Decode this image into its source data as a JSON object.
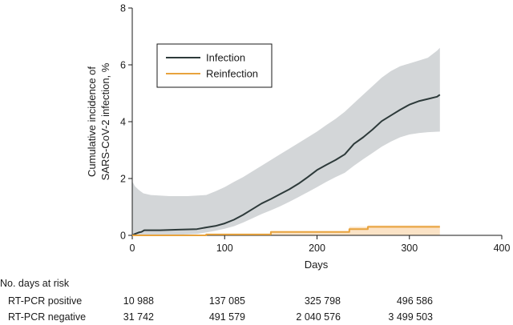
{
  "chart_data": {
    "type": "line",
    "xlabel": "Days",
    "ylabel_lines": [
      "Cumulative incidence of",
      "SARS-CoV-2 infection, %"
    ],
    "xlim": [
      0,
      400
    ],
    "ylim": [
      0,
      8
    ],
    "x_ticks": [
      0,
      100,
      200,
      300,
      400
    ],
    "y_ticks": [
      0,
      2,
      4,
      6,
      8
    ],
    "grid": false,
    "legend_position": "top-left",
    "series": [
      {
        "name": "Infection",
        "color": "#2d3a3a",
        "band_color": "#d3d6d8",
        "points": [
          [
            0,
            0
          ],
          [
            3,
            0.05
          ],
          [
            7,
            0.1
          ],
          [
            10,
            0.12
          ],
          [
            13,
            0.18
          ],
          [
            30,
            0.18
          ],
          [
            50,
            0.2
          ],
          [
            70,
            0.22
          ],
          [
            80,
            0.28
          ],
          [
            90,
            0.33
          ],
          [
            100,
            0.42
          ],
          [
            110,
            0.55
          ],
          [
            120,
            0.72
          ],
          [
            130,
            0.92
          ],
          [
            140,
            1.12
          ],
          [
            150,
            1.28
          ],
          [
            160,
            1.45
          ],
          [
            170,
            1.62
          ],
          [
            180,
            1.82
          ],
          [
            190,
            2.05
          ],
          [
            200,
            2.3
          ],
          [
            210,
            2.48
          ],
          [
            220,
            2.65
          ],
          [
            230,
            2.85
          ],
          [
            240,
            3.22
          ],
          [
            250,
            3.45
          ],
          [
            260,
            3.72
          ],
          [
            270,
            4.02
          ],
          [
            280,
            4.22
          ],
          [
            290,
            4.42
          ],
          [
            300,
            4.6
          ],
          [
            310,
            4.72
          ],
          [
            320,
            4.8
          ],
          [
            330,
            4.88
          ],
          [
            333,
            4.95
          ]
        ],
        "ci_lower": [
          [
            0,
            0
          ],
          [
            3,
            0
          ],
          [
            10,
            0
          ],
          [
            30,
            0
          ],
          [
            50,
            0.02
          ],
          [
            70,
            0.05
          ],
          [
            80,
            0.1
          ],
          [
            90,
            0.16
          ],
          [
            100,
            0.23
          ],
          [
            110,
            0.32
          ],
          [
            120,
            0.45
          ],
          [
            130,
            0.6
          ],
          [
            140,
            0.75
          ],
          [
            150,
            0.88
          ],
          [
            160,
            1.02
          ],
          [
            170,
            1.18
          ],
          [
            180,
            1.35
          ],
          [
            190,
            1.52
          ],
          [
            200,
            1.7
          ],
          [
            210,
            1.88
          ],
          [
            220,
            2.05
          ],
          [
            230,
            2.2
          ],
          [
            240,
            2.45
          ],
          [
            250,
            2.68
          ],
          [
            260,
            2.9
          ],
          [
            270,
            3.12
          ],
          [
            280,
            3.3
          ],
          [
            290,
            3.45
          ],
          [
            300,
            3.55
          ],
          [
            310,
            3.6
          ],
          [
            320,
            3.63
          ],
          [
            333,
            3.65
          ]
        ],
        "ci_upper": [
          [
            0,
            1.9
          ],
          [
            3,
            1.72
          ],
          [
            7,
            1.6
          ],
          [
            12,
            1.48
          ],
          [
            20,
            1.42
          ],
          [
            40,
            1.38
          ],
          [
            60,
            1.38
          ],
          [
            80,
            1.42
          ],
          [
            90,
            1.55
          ],
          [
            100,
            1.7
          ],
          [
            110,
            1.88
          ],
          [
            120,
            2.05
          ],
          [
            130,
            2.25
          ],
          [
            140,
            2.45
          ],
          [
            150,
            2.65
          ],
          [
            160,
            2.85
          ],
          [
            170,
            3.05
          ],
          [
            180,
            3.25
          ],
          [
            190,
            3.45
          ],
          [
            200,
            3.65
          ],
          [
            210,
            3.88
          ],
          [
            220,
            4.1
          ],
          [
            230,
            4.35
          ],
          [
            240,
            4.65
          ],
          [
            250,
            4.95
          ],
          [
            260,
            5.25
          ],
          [
            270,
            5.55
          ],
          [
            280,
            5.78
          ],
          [
            290,
            5.95
          ],
          [
            300,
            6.05
          ],
          [
            310,
            6.15
          ],
          [
            320,
            6.25
          ],
          [
            330,
            6.5
          ],
          [
            333,
            6.6
          ]
        ]
      },
      {
        "name": "Reinfection",
        "color": "#e8a33d",
        "band_color": "#fbe3c6",
        "points": [
          [
            0,
            0
          ],
          [
            80,
            0
          ],
          [
            80,
            0.03
          ],
          [
            150,
            0.03
          ],
          [
            150,
            0.12
          ],
          [
            235,
            0.12
          ],
          [
            235,
            0.22
          ],
          [
            255,
            0.22
          ],
          [
            255,
            0.3
          ],
          [
            333,
            0.3
          ]
        ],
        "ci_lower": [
          [
            0,
            0
          ],
          [
            333,
            0
          ]
        ],
        "ci_upper": [
          [
            0,
            0
          ],
          [
            80,
            0
          ],
          [
            80,
            0.05
          ],
          [
            150,
            0.05
          ],
          [
            150,
            0.15
          ],
          [
            235,
            0.15
          ],
          [
            235,
            0.3
          ],
          [
            255,
            0.3
          ],
          [
            255,
            0.35
          ],
          [
            333,
            0.35
          ]
        ]
      }
    ],
    "risk_table": {
      "title": "No. days at risk",
      "rows": [
        {
          "label": "RT-PCR positive",
          "values": [
            "10 988",
            "137 085",
            "325 798",
            "496 586"
          ]
        },
        {
          "label": "RT-PCR negative",
          "values": [
            "31 742",
            "491 579",
            "2 040 576",
            "3 499 503"
          ]
        }
      ],
      "at_days": [
        0,
        100,
        200,
        300
      ]
    }
  }
}
